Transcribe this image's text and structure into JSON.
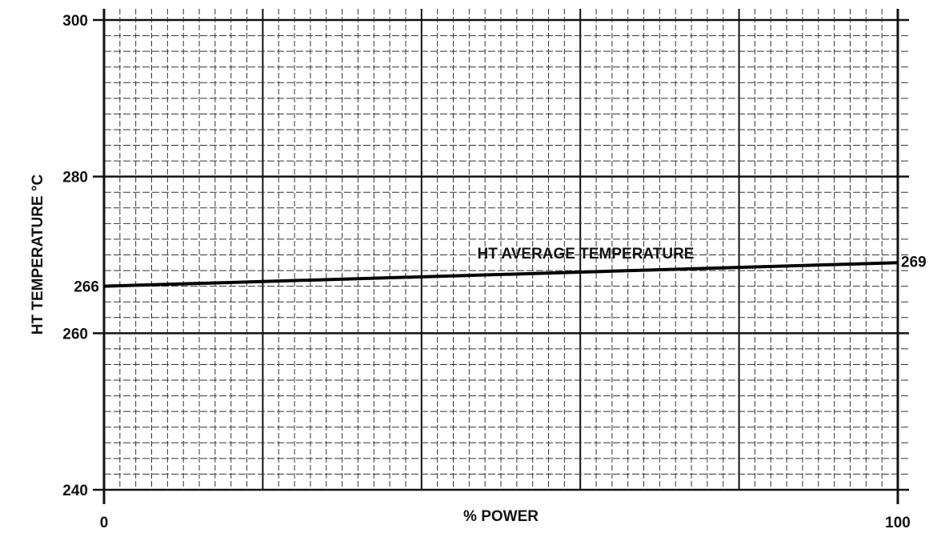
{
  "chart_data": {
    "type": "line",
    "x_label": "% POWER",
    "y_label": "HT TEMPERATURE °C",
    "annotation": "HT AVERAGE TEMPERATURE",
    "x": [
      0,
      100
    ],
    "series": [
      {
        "name": "HT AVERAGE TEMPERATURE",
        "color": "#000000",
        "values": [
          266,
          269
        ],
        "value_labels": [
          "266",
          "269"
        ]
      }
    ],
    "xlim": [
      0,
      100
    ],
    "ylim": [
      240,
      300
    ],
    "xticks": [
      0,
      100
    ],
    "yticks": [
      240,
      260,
      280,
      300
    ],
    "x_major_grid": [
      20,
      40,
      60,
      80
    ],
    "x_minor_grid": [
      2,
      4,
      6,
      8,
      10,
      12,
      14,
      16,
      18,
      22,
      24,
      26,
      28,
      30,
      32,
      34,
      36,
      38,
      42,
      44,
      46,
      48,
      50,
      52,
      54,
      56,
      58,
      62,
      64,
      66,
      68,
      70,
      72,
      74,
      76,
      78,
      82,
      84,
      86,
      88,
      90,
      92,
      94,
      96,
      98
    ],
    "y_minor_grid": [
      242,
      244,
      246,
      248,
      250,
      252,
      254,
      256,
      258,
      262,
      264,
      266,
      268,
      270,
      272,
      274,
      276,
      278,
      282,
      284,
      286,
      288,
      290,
      292,
      294,
      296,
      298
    ],
    "grid": true
  }
}
